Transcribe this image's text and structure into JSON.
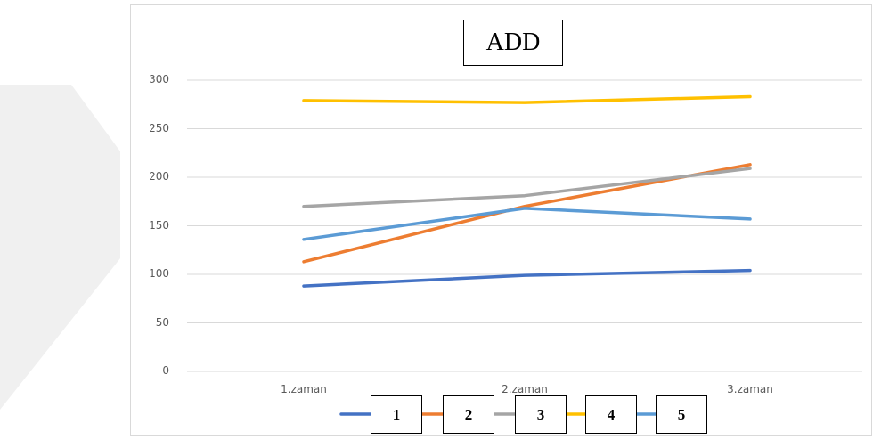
{
  "chart_data": {
    "type": "line",
    "title": "ADD",
    "categories": [
      "1.zaman",
      "2.zaman",
      "3.zaman"
    ],
    "ylim": [
      0,
      300
    ],
    "yticks": [
      "0",
      "50",
      "100",
      "150",
      "200",
      "250",
      "300"
    ],
    "grid": true,
    "legend_position": "bottom",
    "series": [
      {
        "name": "1",
        "values": [
          88,
          99,
          104
        ],
        "color": "#4472c4"
      },
      {
        "name": "2",
        "values": [
          113,
          170,
          213
        ],
        "color": "#ed7d31"
      },
      {
        "name": "3",
        "values": [
          170,
          181,
          209
        ],
        "color": "#a5a5a5"
      },
      {
        "name": "4",
        "values": [
          279,
          277,
          283
        ],
        "color": "#ffc000"
      },
      {
        "name": "5",
        "values": [
          136,
          168,
          157
        ],
        "color": "#5b9bd5"
      }
    ]
  }
}
